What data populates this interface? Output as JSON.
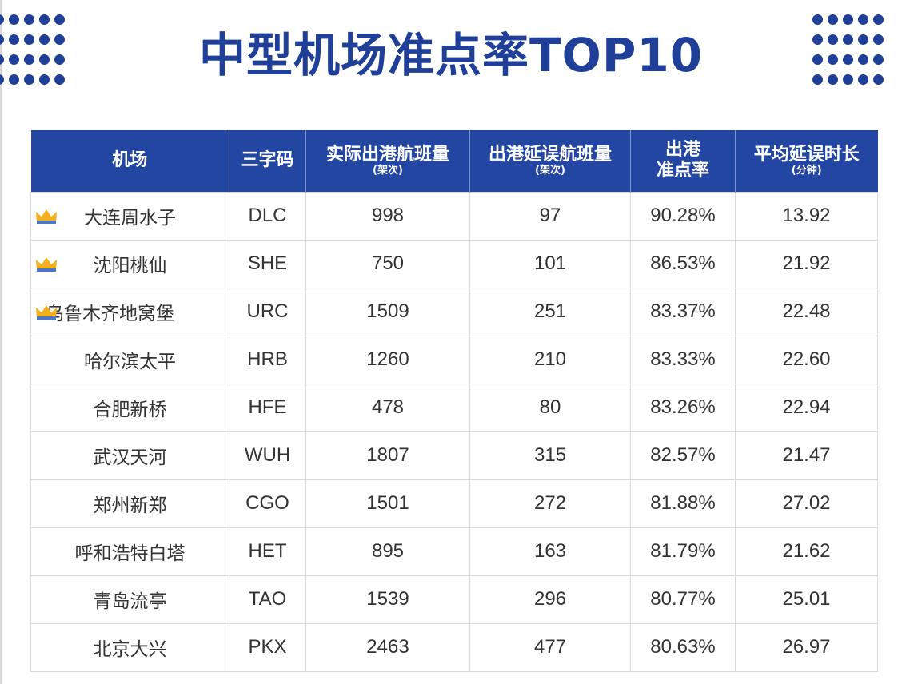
{
  "title": "中型机场准点率TOP10",
  "table": {
    "headers": [
      {
        "main": "机场",
        "sub": ""
      },
      {
        "main": "三字码",
        "sub": ""
      },
      {
        "main": "实际出港航班量",
        "sub": "(架次)"
      },
      {
        "main": "出港延误航班量",
        "sub": "(架次)"
      },
      {
        "main": "出港\n准点率",
        "sub": ""
      },
      {
        "main": "平均延误时长",
        "sub": "(分钟)"
      }
    ],
    "rows": [
      {
        "airport": "大连周水子",
        "code": "DLC",
        "actual": "998",
        "delayed": "97",
        "rate": "90.28%",
        "avg_delay": "13.92",
        "crown": true
      },
      {
        "airport": "沈阳桃仙",
        "code": "SHE",
        "actual": "750",
        "delayed": "101",
        "rate": "86.53%",
        "avg_delay": "21.92",
        "crown": true
      },
      {
        "airport": "乌鲁木齐地窝堡",
        "code": "URC",
        "actual": "1509",
        "delayed": "251",
        "rate": "83.37%",
        "avg_delay": "22.48",
        "crown": true
      },
      {
        "airport": "哈尔滨太平",
        "code": "HRB",
        "actual": "1260",
        "delayed": "210",
        "rate": "83.33%",
        "avg_delay": "22.60",
        "crown": false
      },
      {
        "airport": "合肥新桥",
        "code": "HFE",
        "actual": "478",
        "delayed": "80",
        "rate": "83.26%",
        "avg_delay": "22.94",
        "crown": false
      },
      {
        "airport": "武汉天河",
        "code": "WUH",
        "actual": "1807",
        "delayed": "315",
        "rate": "82.57%",
        "avg_delay": "21.47",
        "crown": false
      },
      {
        "airport": "郑州新郑",
        "code": "CGO",
        "actual": "1501",
        "delayed": "272",
        "rate": "81.88%",
        "avg_delay": "27.02",
        "crown": false
      },
      {
        "airport": "呼和浩特白塔",
        "code": "HET",
        "actual": "895",
        "delayed": "163",
        "rate": "81.79%",
        "avg_delay": "21.62",
        "crown": false
      },
      {
        "airport": "青岛流亭",
        "code": "TAO",
        "actual": "1539",
        "delayed": "296",
        "rate": "80.77%",
        "avg_delay": "25.01",
        "crown": false
      },
      {
        "airport": "北京大兴",
        "code": "PKX",
        "actual": "2463",
        "delayed": "477",
        "rate": "80.63%",
        "avg_delay": "26.97",
        "crown": false
      }
    ]
  },
  "icons": {
    "crown": "crown-icon",
    "dots": "dot-grid-decoration"
  },
  "colors": {
    "brand_blue": "#1f3f99",
    "header_bg": "#2446a3",
    "crown_gold": "#f2b01e"
  }
}
